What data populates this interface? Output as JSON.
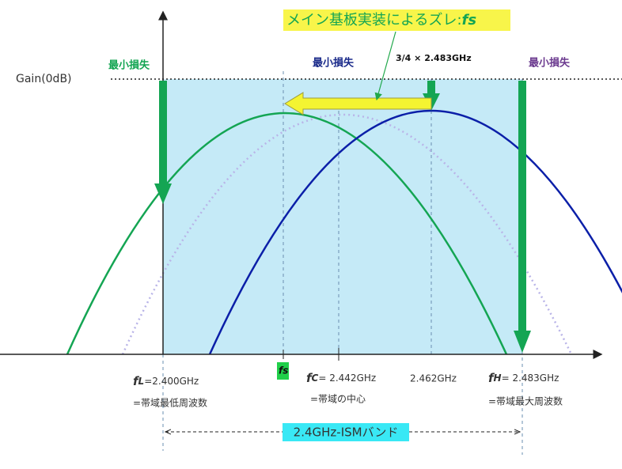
{
  "title": {
    "text": "メイン基板実装によるズレ:",
    "symbol": "fs"
  },
  "gain_label": "Gain(0dB)",
  "min_loss": {
    "low": "最小損失",
    "center": "最小損失",
    "high": "最小損失"
  },
  "shift_note": "3/4 × 2.483GHz",
  "fs_label": "fs",
  "low": {
    "symbol": "f",
    "sub": "L",
    "value": "=2.400GHz",
    "note": "=帯域最低周波数"
  },
  "center": {
    "symbol": "f",
    "sub": "C",
    "value": "= 2.442GHz",
    "note": "=帯域の中心"
  },
  "mid_value": "2.462GHz",
  "high": {
    "symbol": "f",
    "sub": "H",
    "value": "= 2.483GHz",
    "note": "=帯域最大周波数"
  },
  "band_label": "2.4GHz-ISMバンド"
}
